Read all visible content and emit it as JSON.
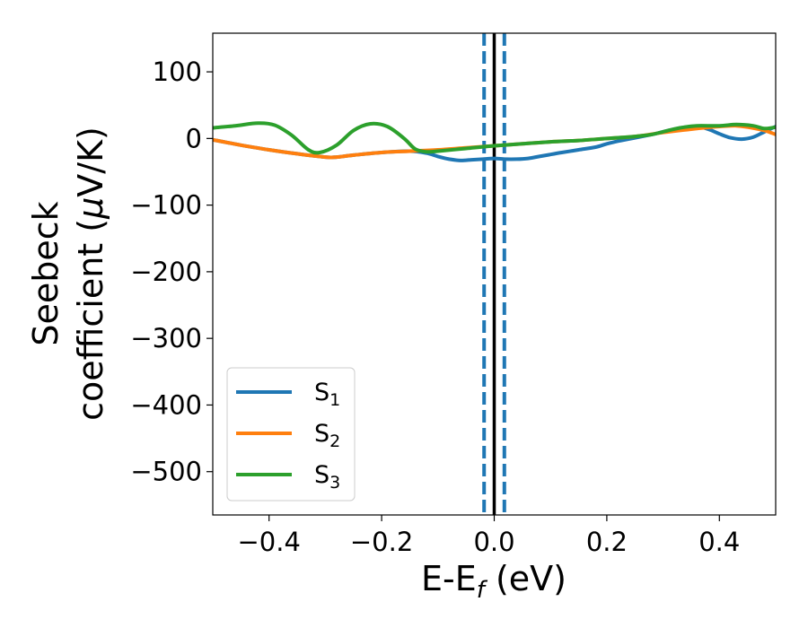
{
  "chart_data": {
    "type": "line",
    "xlabel": {
      "main": "E-E",
      "sub": "f",
      "tail": " (eV)"
    },
    "ylabel": {
      "line1": "Seebeck",
      "line2_pre": "coefficient  (",
      "line2_mu": "μ",
      "line2_post": "V/K)"
    },
    "xlim": [
      -0.5,
      0.5
    ],
    "ylim": [
      -565,
      158
    ],
    "xticks": [
      -0.4,
      -0.2,
      0.0,
      0.2,
      0.4
    ],
    "xtick_labels": [
      "−0.4",
      "−0.2",
      "0.0",
      "0.2",
      "0.4"
    ],
    "yticks": [
      100,
      0,
      -100,
      -200,
      -300,
      -400,
      -500
    ],
    "ytick_labels": [
      "100",
      "0",
      "−100",
      "−200",
      "−300",
      "−400",
      "−500"
    ],
    "grid": false,
    "legend_position": "lower-left",
    "series": [
      {
        "name": "S",
        "sub": "1",
        "color": "#1f77b4",
        "points": [
          [
            -0.5,
            -2
          ],
          [
            -0.45,
            -10
          ],
          [
            -0.4,
            -17
          ],
          [
            -0.35,
            -23
          ],
          [
            -0.3,
            -28
          ],
          [
            -0.28,
            -28
          ],
          [
            -0.25,
            -25
          ],
          [
            -0.2,
            -21
          ],
          [
            -0.15,
            -19
          ],
          [
            -0.12,
            -22
          ],
          [
            -0.1,
            -27
          ],
          [
            -0.08,
            -31
          ],
          [
            -0.06,
            -33
          ],
          [
            -0.04,
            -32
          ],
          [
            -0.02,
            -31
          ],
          [
            0.0,
            -30
          ],
          [
            0.02,
            -31
          ],
          [
            0.04,
            -31
          ],
          [
            0.06,
            -30
          ],
          [
            0.08,
            -27
          ],
          [
            0.1,
            -24
          ],
          [
            0.12,
            -21
          ],
          [
            0.15,
            -17
          ],
          [
            0.18,
            -13
          ],
          [
            0.2,
            -8
          ],
          [
            0.22,
            -4
          ],
          [
            0.25,
            1
          ],
          [
            0.28,
            6
          ],
          [
            0.3,
            10
          ],
          [
            0.32,
            14
          ],
          [
            0.34,
            17
          ],
          [
            0.36,
            18
          ],
          [
            0.38,
            14
          ],
          [
            0.4,
            7
          ],
          [
            0.42,
            1
          ],
          [
            0.44,
            -1
          ],
          [
            0.46,
            2
          ],
          [
            0.48,
            10
          ],
          [
            0.5,
            18
          ]
        ]
      },
      {
        "name": "S",
        "sub": "2",
        "color": "#ff7f0e",
        "points": [
          [
            -0.5,
            -2
          ],
          [
            -0.45,
            -10
          ],
          [
            -0.4,
            -17
          ],
          [
            -0.35,
            -23
          ],
          [
            -0.3,
            -28
          ],
          [
            -0.28,
            -28
          ],
          [
            -0.25,
            -25
          ],
          [
            -0.2,
            -21
          ],
          [
            -0.15,
            -19
          ],
          [
            -0.1,
            -17
          ],
          [
            -0.05,
            -14
          ],
          [
            0.0,
            -11
          ],
          [
            0.05,
            -8
          ],
          [
            0.1,
            -5
          ],
          [
            0.15,
            -3
          ],
          [
            0.2,
            0
          ],
          [
            0.25,
            3
          ],
          [
            0.3,
            9
          ],
          [
            0.35,
            14
          ],
          [
            0.4,
            18
          ],
          [
            0.43,
            19
          ],
          [
            0.45,
            17
          ],
          [
            0.48,
            12
          ],
          [
            0.5,
            6
          ]
        ]
      },
      {
        "name": "S",
        "sub": "3",
        "color": "#2ca02c",
        "points": [
          [
            -0.5,
            16
          ],
          [
            -0.46,
            19
          ],
          [
            -0.42,
            23
          ],
          [
            -0.39,
            20
          ],
          [
            -0.36,
            5
          ],
          [
            -0.33,
            -17
          ],
          [
            -0.31,
            -21
          ],
          [
            -0.28,
            -10
          ],
          [
            -0.25,
            12
          ],
          [
            -0.22,
            22
          ],
          [
            -0.19,
            18
          ],
          [
            -0.16,
            0
          ],
          [
            -0.14,
            -16
          ],
          [
            -0.12,
            -20
          ],
          [
            -0.1,
            -19
          ],
          [
            -0.05,
            -15
          ],
          [
            0.0,
            -11
          ],
          [
            0.05,
            -8
          ],
          [
            0.1,
            -5
          ],
          [
            0.15,
            -3
          ],
          [
            0.2,
            0
          ],
          [
            0.25,
            3
          ],
          [
            0.28,
            6
          ],
          [
            0.3,
            10
          ],
          [
            0.33,
            16
          ],
          [
            0.36,
            19
          ],
          [
            0.4,
            19
          ],
          [
            0.43,
            21
          ],
          [
            0.46,
            19
          ],
          [
            0.48,
            15
          ],
          [
            0.5,
            17
          ]
        ]
      }
    ],
    "vlines": [
      {
        "x": 0.0,
        "color": "#000000",
        "style": "solid"
      },
      {
        "x": -0.018,
        "color": "#1f77b4",
        "style": "dashed"
      },
      {
        "x": 0.018,
        "color": "#1f77b4",
        "style": "dashed"
      }
    ]
  }
}
